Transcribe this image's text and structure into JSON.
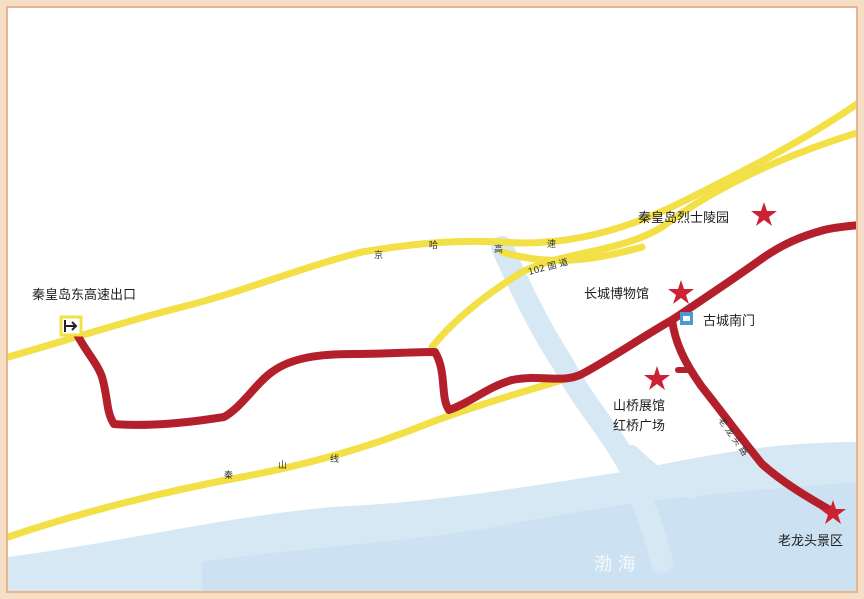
{
  "map": {
    "places": {
      "highway_exit": "秦皇岛东高速出口",
      "martyrs_cemetery": "秦皇岛烈士陵园",
      "great_wall_museum": "长城博物馆",
      "old_city_south_gate": "古城南门",
      "shanqiao_hall": "山桥展馆",
      "hongqiao_square": "红桥广场",
      "laolongtou": "老龙头景区"
    },
    "roads": {
      "jingha_1": "京",
      "jingha_2": "哈",
      "jingha_3": "高",
      "jingha_4": "速",
      "national_road": "102 国 道",
      "qinshan_1": "秦",
      "qinshan_2": "山",
      "qinshan_3": "线",
      "laolong_road": "老 龙 头 路"
    },
    "sea_label": "渤 海",
    "colors": {
      "route": "#b3202c",
      "road": "#f2e046",
      "water": "#d6e8f4",
      "star": "#cc2233",
      "gate_icon": "#4a9ad8"
    }
  }
}
